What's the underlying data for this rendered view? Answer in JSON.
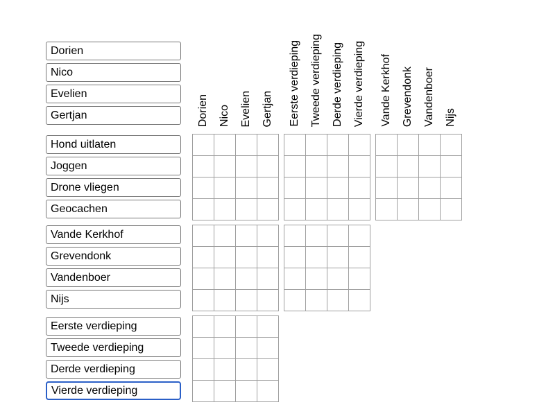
{
  "colors": {
    "input_border": "#767676",
    "focus_border": "#2a5fc7",
    "grid_line": "#9e9e9e",
    "background": "#ffffff",
    "text": "#000000"
  },
  "column_headers": [
    "Dorien",
    "Nico",
    "Evelien",
    "Gertjan",
    "Eerste verdieping",
    "Tweede verdieping",
    "Derde verdieping",
    "Vierde verdieping",
    "Vande Kerkhof",
    "Grevendonk",
    "Vandenboer",
    "Nijs"
  ],
  "input_groups": {
    "names": [
      "Dorien",
      "Nico",
      "Evelien",
      "Gertjan"
    ],
    "activities": [
      "Hond uitlaten",
      "Joggen",
      "Drone vliegen",
      "Geocachen"
    ],
    "surnames": [
      "Vande Kerkhof",
      "Grevendonk",
      "Vandenboer",
      "Nijs"
    ],
    "floors": [
      "Eerste verdieping",
      "Tweede verdieping",
      "Derde verdieping",
      "Vierde verdieping"
    ]
  },
  "focused_input": "Vierde verdieping",
  "grid": {
    "rows_per_block": 4,
    "cols_per_block": 4,
    "blocks": [
      "activities-names",
      "activities-floors",
      "activities-surnames",
      "surnames-names",
      "surnames-floors",
      "floors-names"
    ],
    "cells_state": "all-empty"
  }
}
